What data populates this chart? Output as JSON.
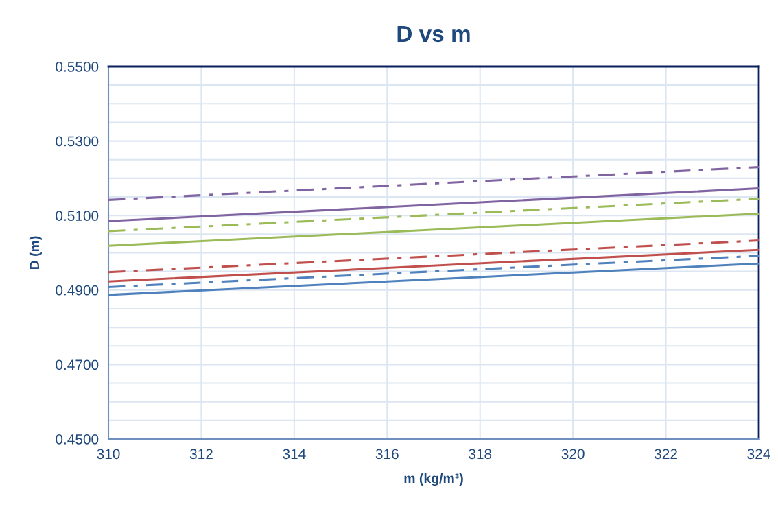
{
  "chart_data": {
    "type": "line",
    "title": "D vs m",
    "xlabel": "m (kg/m³)",
    "ylabel": "D (m)",
    "x": [
      310,
      324
    ],
    "series": [
      {
        "color": "#4f81bd",
        "line_style": "solid",
        "values": [
          0.4887,
          0.4971
        ]
      },
      {
        "color": "#4f81bd",
        "line_style": "dashdot",
        "values": [
          0.4908,
          0.4992
        ]
      },
      {
        "color": "#c0504d",
        "line_style": "solid",
        "values": [
          0.4923,
          0.5008
        ]
      },
      {
        "color": "#c0504d",
        "line_style": "dashdot",
        "values": [
          0.4948,
          0.5033
        ]
      },
      {
        "color": "#9bbb59",
        "line_style": "solid",
        "values": [
          0.5019,
          0.5105
        ]
      },
      {
        "color": "#9bbb59",
        "line_style": "dashdot",
        "values": [
          0.5058,
          0.5145
        ]
      },
      {
        "color": "#8064a2",
        "line_style": "solid",
        "values": [
          0.5085,
          0.5173
        ]
      },
      {
        "color": "#8064a2",
        "line_style": "dashdot",
        "values": [
          0.5142,
          0.523
        ]
      }
    ],
    "xlim": [
      310,
      324
    ],
    "xticks": [
      310,
      312,
      314,
      316,
      318,
      320,
      322,
      324
    ],
    "ylim": [
      0.45,
      0.55
    ],
    "yticks": [
      {
        "value": 0.45,
        "label": "0.4500"
      },
      {
        "value": 0.455,
        "label": null
      },
      {
        "value": 0.46,
        "label": null
      },
      {
        "value": 0.465,
        "label": null
      },
      {
        "value": 0.47,
        "label": "0.4700"
      },
      {
        "value": 0.475,
        "label": null
      },
      {
        "value": 0.48,
        "label": null
      },
      {
        "value": 0.485,
        "label": null
      },
      {
        "value": 0.49,
        "label": "0.4900"
      },
      {
        "value": 0.495,
        "label": null
      },
      {
        "value": 0.5,
        "label": null
      },
      {
        "value": 0.505,
        "label": null
      },
      {
        "value": 0.51,
        "label": "0.5100"
      },
      {
        "value": 0.515,
        "label": null
      },
      {
        "value": 0.52,
        "label": null
      },
      {
        "value": 0.525,
        "label": null
      },
      {
        "value": 0.53,
        "label": "0.5300"
      },
      {
        "value": 0.535,
        "label": null
      },
      {
        "value": 0.54,
        "label": null
      },
      {
        "value": 0.545,
        "label": null
      },
      {
        "value": 0.55,
        "label": "0.5500"
      }
    ],
    "grid": true,
    "legend": false,
    "marker": "none"
  }
}
